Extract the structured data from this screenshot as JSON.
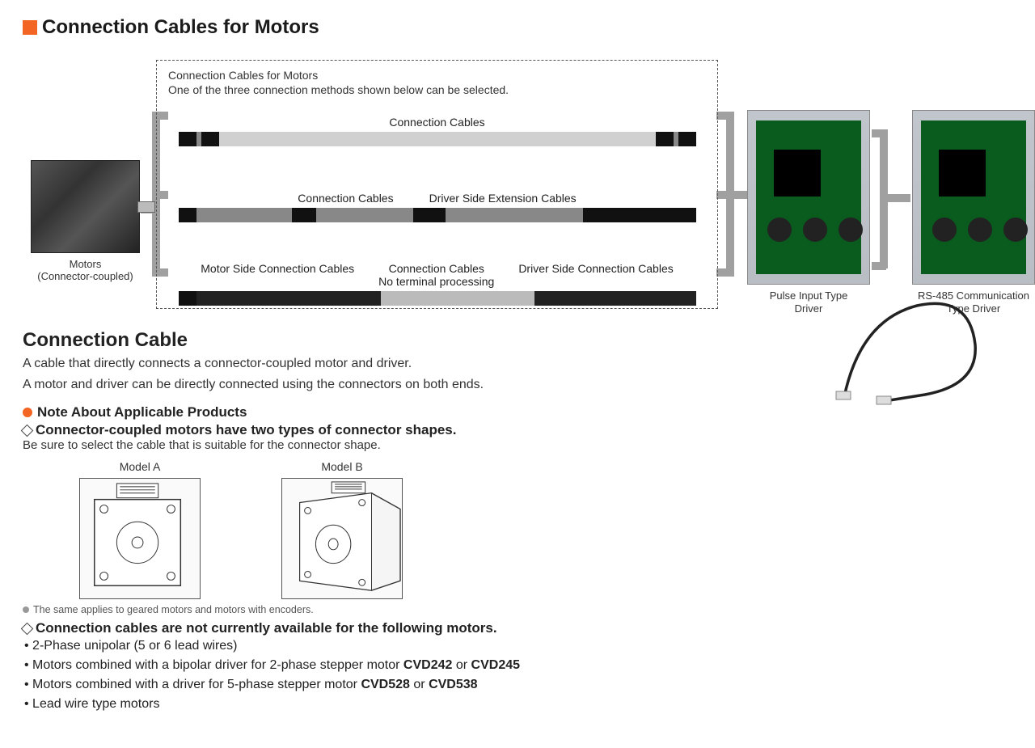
{
  "colors": {
    "accent_orange": "#f26522",
    "pcb_green": "#0a5c1e",
    "text": "#212121",
    "line_grey": "#a0a0a0"
  },
  "main_title": "Connection Cables for Motors",
  "diagram": {
    "dashed_box_title": "Connection Cables for Motors",
    "dashed_box_subtitle": "One of the three connection methods shown below can be selected.",
    "row1": {
      "label": "Connection Cables"
    },
    "row2": {
      "label_left": "Connection Cables",
      "label_right": "Driver Side Extension Cables"
    },
    "row3": {
      "label_left": "Motor Side Connection Cables",
      "label_mid_top": "Connection Cables",
      "label_mid_bottom": "No terminal processing",
      "label_right": "Driver Side Connection Cables"
    },
    "motor": {
      "line1": "Motors",
      "line2": "(Connector-coupled)"
    },
    "driver1": {
      "line1": "Pulse Input Type",
      "line2": "Driver"
    },
    "driver2": {
      "line1": "RS-485 Communication",
      "line2": "Type Driver"
    }
  },
  "section_title": "Connection Cable",
  "section_body1": "A cable that directly connects a connector-coupled motor and driver.",
  "section_body2": "A motor and driver can be directly connected using the connectors on both ends.",
  "note_title": "Note About Applicable Products",
  "sub_note1": "Connector-coupled motors have two types of connector shapes.",
  "sub_note1_detail": "Be sure to select the cable that is suitable for the connector shape.",
  "models": {
    "a": "Model A",
    "b": "Model B"
  },
  "fine_print": "The same applies to geared motors and motors with encoders.",
  "sub_note2": "Connection cables are not currently available for the following motors.",
  "bullets": [
    "2-Phase unipolar (5 or 6 lead wires)",
    "Motors combined with a bipolar driver for 2-phase stepper motor CVD242 or CVD245",
    "Motors combined with a driver for 5-phase stepper motor CVD528 or CVD538",
    "Lead wire type motors"
  ],
  "bold_codes": [
    "CVD242",
    "CVD245",
    "CVD528",
    "CVD538"
  ]
}
